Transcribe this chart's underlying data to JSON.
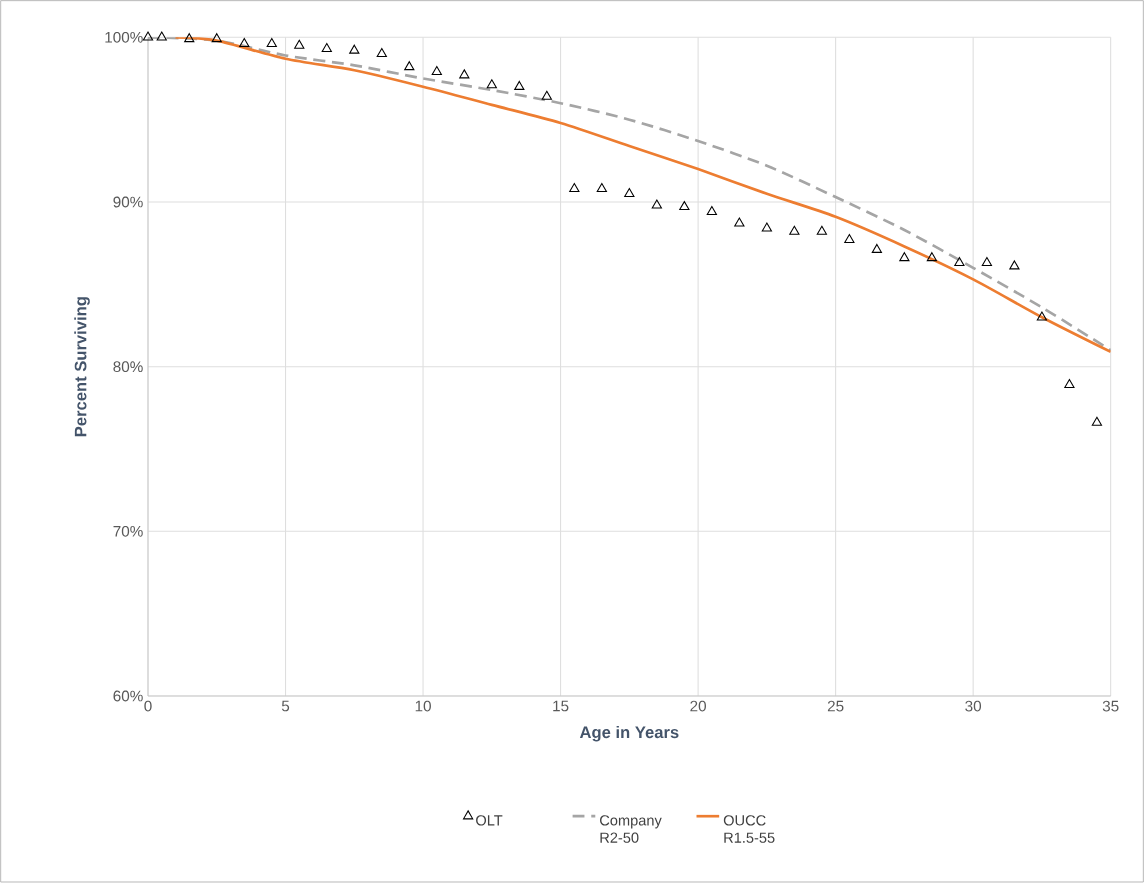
{
  "chart_data": {
    "type": "line",
    "xlabel": "Age in Years",
    "ylabel": "Percent Surviving",
    "xlim": [
      0,
      35
    ],
    "ylim": [
      60,
      100
    ],
    "xticks": [
      0,
      5,
      10,
      15,
      20,
      25,
      30,
      35
    ],
    "yticks": [
      {
        "value": 60,
        "label": "60%"
      },
      {
        "value": 70,
        "label": "70%"
      },
      {
        "value": 80,
        "label": "80%"
      },
      {
        "value": 90,
        "label": "90%"
      },
      {
        "value": 100,
        "label": "100%"
      }
    ],
    "grid": true,
    "legend": "bottom",
    "series": [
      {
        "name": "OLT",
        "type": "scatter",
        "color": "#000000",
        "marker": "triangle",
        "x": [
          0,
          0.5,
          1.5,
          2.5,
          3.5,
          4.5,
          5.5,
          6.5,
          7.5,
          8.5,
          9.5,
          10.5,
          11.5,
          12.5,
          13.5,
          14.5,
          15.5,
          16.5,
          17.5,
          18.5,
          19.5,
          20.5,
          21.5,
          22.5,
          23.5,
          24.5,
          25.5,
          26.5,
          27.5,
          28.5,
          29.5,
          30.5,
          31.5,
          32.5,
          33.5,
          34.5
        ],
        "values": [
          100,
          100,
          99.9,
          99.9,
          99.6,
          99.6,
          99.5,
          99.3,
          99.2,
          99.0,
          98.2,
          97.9,
          97.7,
          97.1,
          97.0,
          96.4,
          90.8,
          90.8,
          90.5,
          89.8,
          89.7,
          89.4,
          88.7,
          88.4,
          88.2,
          88.2,
          87.7,
          87.1,
          86.6,
          86.6,
          86.3,
          86.3,
          86.1,
          83.0,
          78.9,
          76.6
        ]
      },
      {
        "name": "Company R2-50",
        "color": "#a5a5a5",
        "line_style": "dashed",
        "marker": "none",
        "x": [
          0,
          2.5,
          5,
          7.5,
          10,
          12.5,
          15,
          17.5,
          20,
          22.5,
          25,
          27.5,
          30,
          32.5,
          35
        ],
        "values": [
          100,
          99.8,
          98.9,
          98.3,
          97.5,
          96.8,
          96.0,
          95.0,
          93.7,
          92.2,
          90.3,
          88.3,
          86.0,
          83.6,
          81.0
        ]
      },
      {
        "name": "OUCC R1.5-55",
        "color": "#ed7d31",
        "line_style": "solid",
        "marker": "none",
        "x": [
          1,
          2.5,
          5,
          7.5,
          10,
          12.5,
          15,
          17.5,
          20,
          22.5,
          25,
          27.5,
          30,
          32.5,
          35
        ],
        "values": [
          100,
          99.8,
          98.7,
          98.0,
          97.0,
          95.9,
          94.8,
          93.4,
          92.0,
          90.5,
          89.1,
          87.3,
          85.3,
          83.0,
          80.9
        ]
      }
    ]
  }
}
